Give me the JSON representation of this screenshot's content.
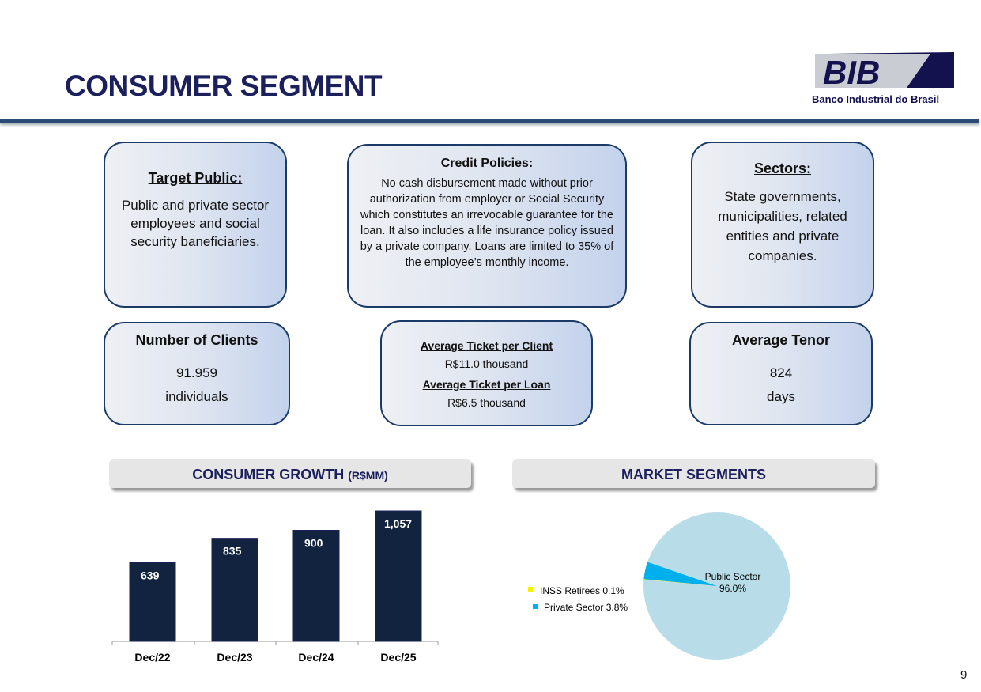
{
  "header": {
    "title": "CONSUMER SEGMENT",
    "logo_text": "BIB",
    "logo_subtitle": "Banco Industrial do Brasil"
  },
  "cards": {
    "target": {
      "title": "Target Public:",
      "body": "Public and private sector employees and social security baneficiaries."
    },
    "credit": {
      "title": "Credit Policies:",
      "body": "No cash disbursement made without prior authorization from employer or Social Security which constitutes an irrevocable guarantee for the loan. It also includes a life insurance policy issued by a private company. Loans are limited to 35% of the employee’s monthly income."
    },
    "sectors": {
      "title": "Sectors:",
      "body": "State governments, municipalities, related entities and private companies."
    },
    "clients": {
      "title": "Number of Clients",
      "value": "91.959",
      "unit": "individuals"
    },
    "ticket": {
      "client_title": "Average Ticket per Client",
      "client_value": "R$11.0 thousand",
      "loan_title": "Average Ticket per Loan",
      "loan_value": "R$6.5 thousand"
    },
    "tenor": {
      "title": "Average Tenor",
      "value": "824",
      "unit": "days"
    }
  },
  "banners": {
    "growth": "CONSUMER GROWTH",
    "growth_unit": "(R$MM)",
    "segments": "MARKET SEGMENTS"
  },
  "page_number": "9",
  "chart_data": [
    {
      "type": "bar",
      "title": "CONSUMER GROWTH (R$MM)",
      "categories": [
        "Dec/22",
        "Dec/23",
        "Dec/24",
        "Dec/25"
      ],
      "values": [
        639,
        835,
        900,
        1057
      ],
      "labels": [
        "639",
        "835",
        "900",
        "1,057"
      ],
      "ylim": [
        0,
        1100
      ],
      "color": "#12233f"
    },
    {
      "type": "pie",
      "title": "MARKET SEGMENTS",
      "slices": [
        {
          "name": "Public Sector",
          "value": 96.0,
          "label": "Public Sector",
          "pct": "96.0%",
          "color": "#b8dde8"
        },
        {
          "name": "INSS Retirees",
          "value": 0.1,
          "label": "INSS Retirees 0.1%",
          "color": "#f2f200"
        },
        {
          "name": "Private Sector",
          "value": 3.8,
          "label": "Private Sector 3.8%",
          "color": "#00b0ec"
        }
      ]
    }
  ]
}
